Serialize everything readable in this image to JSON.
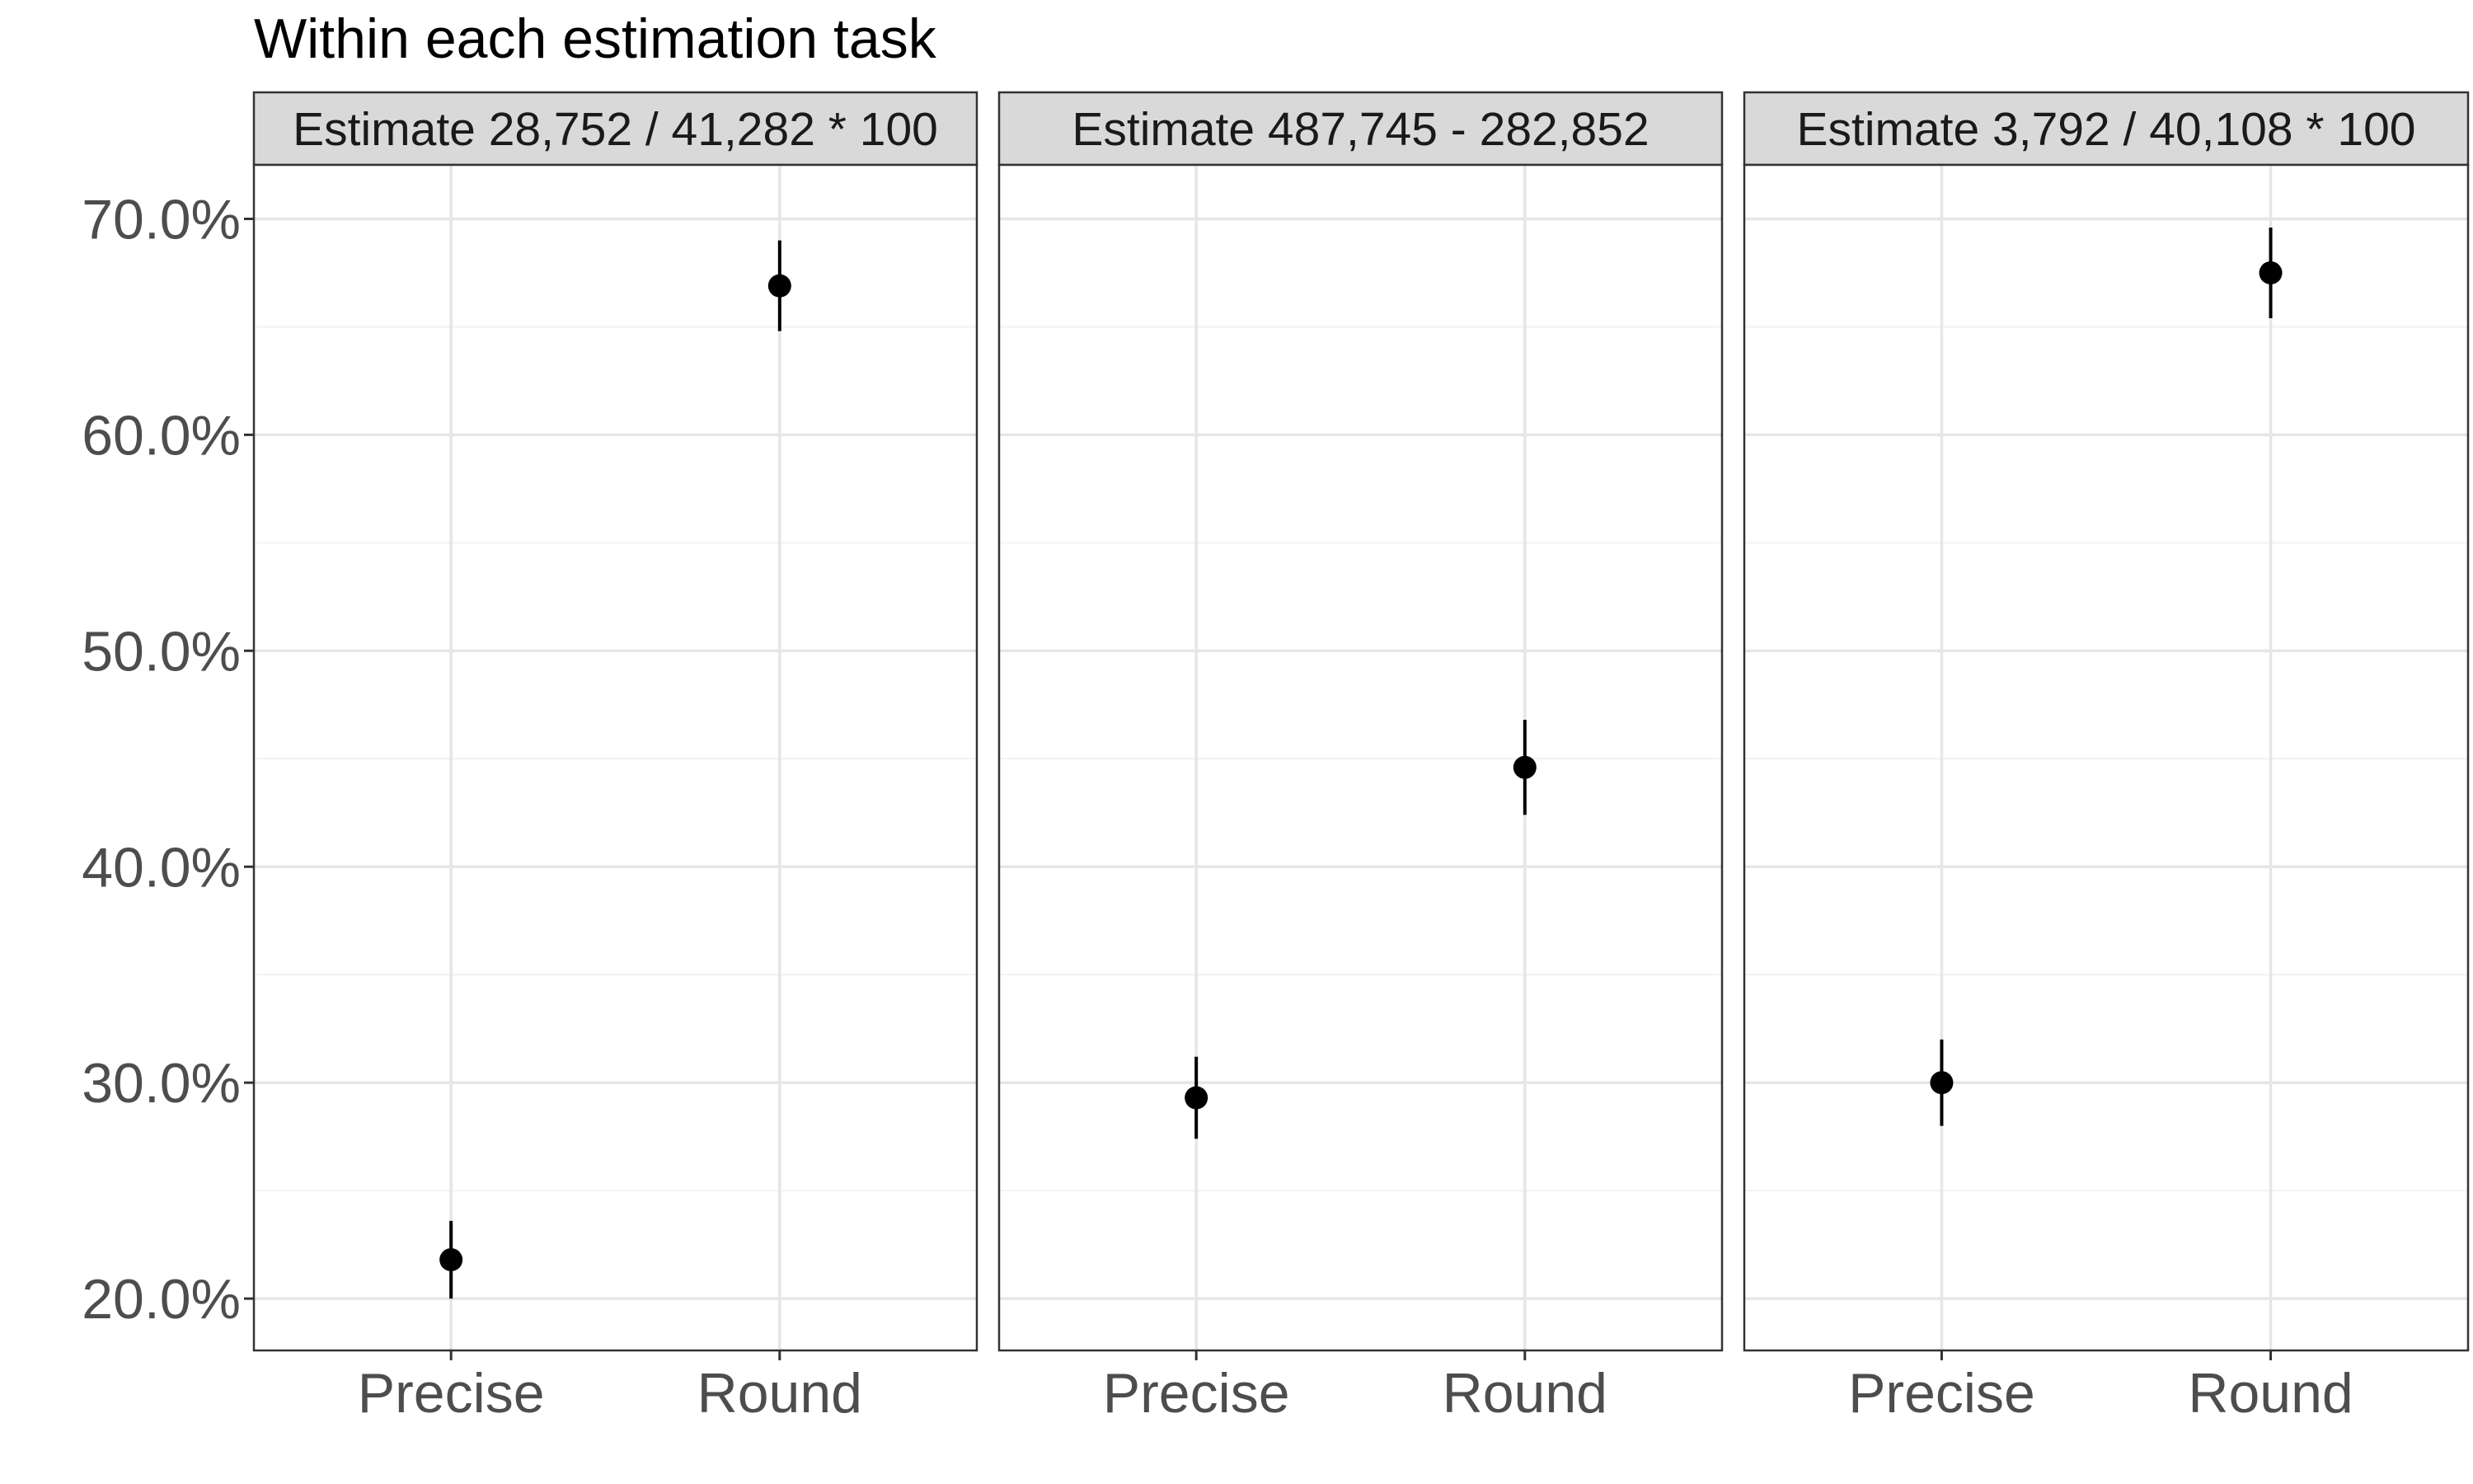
{
  "chart_data": {
    "type": "scatter",
    "title": "Within each estimation task",
    "categories": [
      "Precise",
      "Round"
    ],
    "y_tick_labels": [
      "20.0%",
      "30.0%",
      "40.0%",
      "50.0%",
      "60.0%",
      "70.0%"
    ],
    "y_ticks": [
      20,
      30,
      40,
      50,
      60,
      70
    ],
    "ylim": [
      17.6,
      72.5
    ],
    "y_unit": "%",
    "grid": true,
    "error_bars": true,
    "panels": [
      {
        "label": "Estimate 28,752 / 41,282 * 100",
        "points": [
          {
            "category": "Precise",
            "y": 21.8,
            "low": 20.0,
            "high": 23.6
          },
          {
            "category": "Round",
            "y": 66.9,
            "low": 64.8,
            "high": 69.0
          }
        ]
      },
      {
        "label": "Estimate 487,745 - 282,852",
        "points": [
          {
            "category": "Precise",
            "y": 29.3,
            "low": 27.4,
            "high": 31.2
          },
          {
            "category": "Round",
            "y": 44.6,
            "low": 42.4,
            "high": 46.8
          }
        ]
      },
      {
        "label": "Estimate 3,792 / 40,108 * 100",
        "points": [
          {
            "category": "Precise",
            "y": 30.0,
            "low": 28.0,
            "high": 32.0
          },
          {
            "category": "Round",
            "y": 67.5,
            "low": 65.4,
            "high": 69.6
          }
        ]
      }
    ]
  }
}
